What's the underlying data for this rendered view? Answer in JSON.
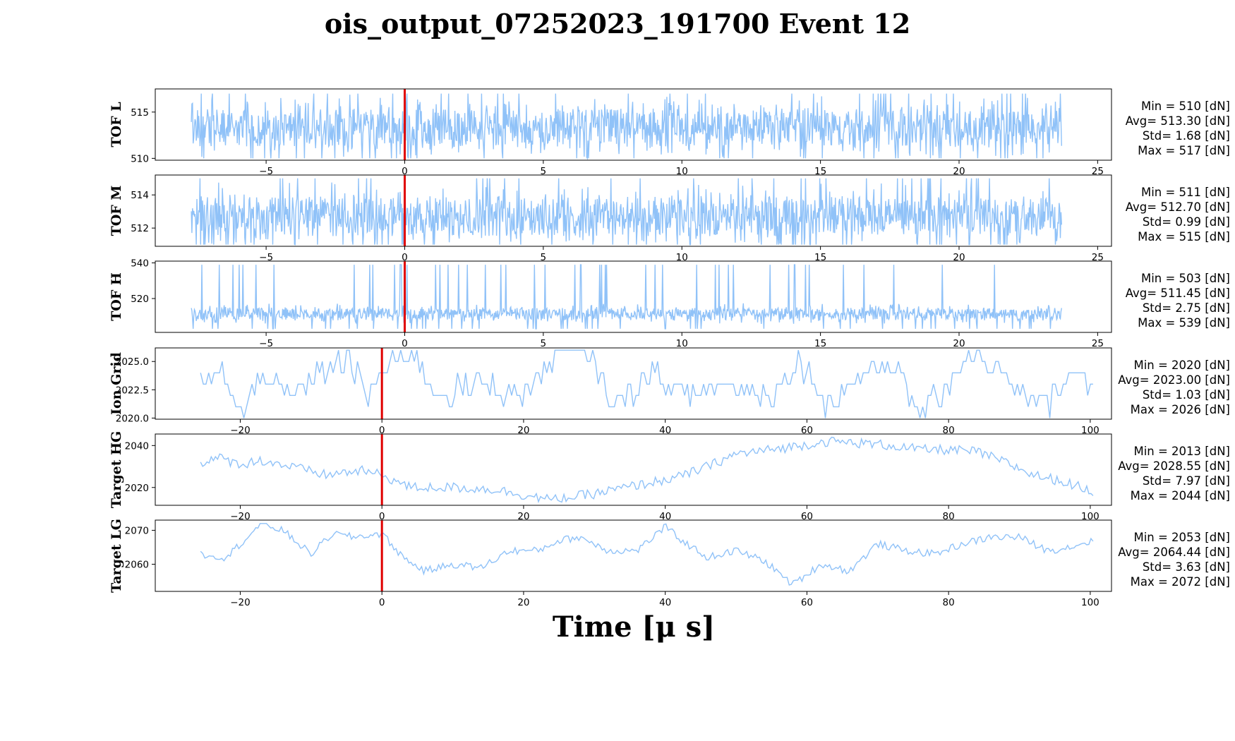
{
  "figure": {
    "title": "ois_output_07252023_191700 Event 12",
    "xlabel": "Time [μ s]"
  },
  "colors": {
    "signal": "#90c2f8",
    "marker": "#e00000",
    "frame": "#000000"
  },
  "chart_data": [
    {
      "type": "line",
      "ylabel": "TOF L",
      "xlim": [
        -9,
        25.5
      ],
      "ylim": [
        509.8,
        517.5
      ],
      "xticks": [
        -5,
        0,
        5,
        10,
        15,
        20,
        25
      ],
      "xtick_labels": [
        "−5",
        "0",
        "5",
        "10",
        "15",
        "20",
        "25"
      ],
      "yticks": [
        510,
        515
      ],
      "ytick_labels": [
        "510",
        "515"
      ],
      "marker_x": 0,
      "series": [
        {
          "x_range": [
            -7.7,
            23.7
          ],
          "pattern": "noise",
          "min": 510,
          "max": 517,
          "avg": 513.3,
          "std": 1.68
        }
      ],
      "stats": [
        "Min = 510 [dN]",
        "Avg= 513.30 [dN]",
        "Std= 1.68 [dN]",
        "Max = 517 [dN]"
      ]
    },
    {
      "type": "line",
      "ylabel": "TOF M",
      "xlim": [
        -9,
        25.5
      ],
      "ylim": [
        510.9,
        515.2
      ],
      "xticks": [
        -5,
        0,
        5,
        10,
        15,
        20,
        25
      ],
      "xtick_labels": [
        "−5",
        "0",
        "5",
        "10",
        "15",
        "20",
        "25"
      ],
      "yticks": [
        512,
        514
      ],
      "ytick_labels": [
        "512",
        "514"
      ],
      "marker_x": 0,
      "series": [
        {
          "x_range": [
            -7.7,
            23.7
          ],
          "pattern": "noise",
          "min": 511,
          "max": 515,
          "avg": 512.7,
          "std": 0.99
        }
      ],
      "stats": [
        "Min = 511 [dN]",
        "Avg= 512.70 [dN]",
        "Std= 0.99 [dN]",
        "Max = 515 [dN]"
      ]
    },
    {
      "type": "line",
      "ylabel": "TOF H",
      "xlim": [
        -9,
        25.5
      ],
      "ylim": [
        501,
        541
      ],
      "xticks": [
        -5,
        0,
        5,
        10,
        15,
        20,
        25
      ],
      "xtick_labels": [
        "−5",
        "0",
        "5",
        "10",
        "15",
        "20",
        "25"
      ],
      "yticks": [
        520,
        540
      ],
      "ytick_labels": [
        "520",
        "540"
      ],
      "marker_x": 0,
      "series": [
        {
          "x_range": [
            -7.7,
            23.7
          ],
          "pattern": "noise",
          "min": 503,
          "max": 539,
          "avg": 511.45,
          "std": 2.75,
          "spike_x": -0.15
        }
      ],
      "stats": [
        "Min = 503 [dN]",
        "Avg= 511.45 [dN]",
        "Std= 2.75 [dN]",
        "Max = 539 [dN]"
      ]
    },
    {
      "type": "line",
      "ylabel": "Ion Grid",
      "xlim": [
        -32,
        103
      ],
      "ylim": [
        2019.9,
        2026.2
      ],
      "xticks": [
        -20,
        0,
        20,
        40,
        60,
        80,
        100
      ],
      "xtick_labels": [
        "−20",
        "0",
        "20",
        "40",
        "60",
        "80",
        "100"
      ],
      "yticks": [
        2020.0,
        2022.5,
        2025.0
      ],
      "ytick_labels": [
        "2020.0",
        "2022.5",
        "2025.0"
      ],
      "marker_x": 0,
      "series": [
        {
          "x_range": [
            -25.6,
            100.4
          ],
          "pattern": "steps",
          "anchors": [
            [
              -25.6,
              2023
            ],
            [
              -22,
              2024
            ],
            [
              -20,
              2020
            ],
            [
              -17,
              2024
            ],
            [
              -13,
              2022
            ],
            [
              -9,
              2024
            ],
            [
              -5,
              2025
            ],
            [
              -2,
              2022
            ],
            [
              0,
              2024
            ],
            [
              4,
              2026
            ],
            [
              8,
              2022
            ],
            [
              14,
              2023
            ],
            [
              20,
              2022
            ],
            [
              25,
              2026
            ],
            [
              29,
              2026
            ],
            [
              33,
              2021
            ],
            [
              38,
              2024
            ],
            [
              43,
              2022
            ],
            [
              48,
              2023
            ],
            [
              55,
              2022
            ],
            [
              59,
              2025
            ],
            [
              63,
              2021
            ],
            [
              68,
              2024
            ],
            [
              72,
              2025
            ],
            [
              76,
              2020
            ],
            [
              80,
              2023
            ],
            [
              83,
              2026
            ],
            [
              87,
              2024
            ],
            [
              90,
              2022
            ],
            [
              94,
              2021
            ],
            [
              97,
              2024
            ],
            [
              100.4,
              2023
            ]
          ],
          "min": 2020,
          "max": 2026,
          "avg": 2023.0,
          "std": 1.03
        }
      ],
      "stats": [
        "Min = 2020 [dN]",
        "Avg= 2023.00 [dN]",
        "Std= 1.03 [dN]",
        "Max = 2026 [dN]"
      ]
    },
    {
      "type": "line",
      "ylabel": "Target HG",
      "xlim": [
        -32,
        103
      ],
      "ylim": [
        2011.5,
        2045.5
      ],
      "xticks": [
        -20,
        0,
        20,
        40,
        60,
        80,
        100
      ],
      "xtick_labels": [
        "−20",
        "0",
        "20",
        "40",
        "60",
        "80",
        "100"
      ],
      "yticks": [
        2020,
        2040
      ],
      "ytick_labels": [
        "2020",
        "2040"
      ],
      "marker_x": 0,
      "series": [
        {
          "x_range": [
            -25.6,
            100.4
          ],
          "pattern": "smooth",
          "anchors": [
            [
              -25.6,
              2032
            ],
            [
              -23,
              2034
            ],
            [
              -20,
              2031
            ],
            [
              -17,
              2033
            ],
            [
              -13,
              2030
            ],
            [
              -8,
              2026
            ],
            [
              -3,
              2028
            ],
            [
              0,
              2026
            ],
            [
              4,
              2020
            ],
            [
              10,
              2020
            ],
            [
              16,
              2019
            ],
            [
              24,
              2014
            ],
            [
              30,
              2017
            ],
            [
              36,
              2021
            ],
            [
              42,
              2025
            ],
            [
              46,
              2030
            ],
            [
              50,
              2036
            ],
            [
              55,
              2038
            ],
            [
              59,
              2040
            ],
            [
              63,
              2042
            ],
            [
              68,
              2041
            ],
            [
              72,
              2040
            ],
            [
              76,
              2038
            ],
            [
              80,
              2038
            ],
            [
              84,
              2037
            ],
            [
              88,
              2032
            ],
            [
              92,
              2026
            ],
            [
              96,
              2023
            ],
            [
              100.4,
              2018
            ]
          ],
          "min": 2013,
          "max": 2044,
          "avg": 2028.55,
          "std": 7.97
        }
      ],
      "stats": [
        "Min = 2013 [dN]",
        "Avg= 2028.55 [dN]",
        "Std= 7.97 [dN]",
        "Max = 2044 [dN]"
      ]
    },
    {
      "type": "line",
      "ylabel": "Target LG",
      "xlim": [
        -32,
        103
      ],
      "ylim": [
        2052,
        2073
      ],
      "xticks": [
        -20,
        0,
        20,
        40,
        60,
        80,
        100
      ],
      "xtick_labels": [
        "−20",
        "0",
        "20",
        "40",
        "60",
        "80",
        "100"
      ],
      "yticks": [
        2060,
        2070
      ],
      "ytick_labels": [
        "2060",
        "2070"
      ],
      "marker_x": 0,
      "series": [
        {
          "x_range": [
            -25.6,
            100.4
          ],
          "pattern": "smooth",
          "anchors": [
            [
              -25.6,
              2063
            ],
            [
              -22,
              2062
            ],
            [
              -20,
              2066
            ],
            [
              -17,
              2072
            ],
            [
              -14,
              2070
            ],
            [
              -10,
              2063
            ],
            [
              -7,
              2069
            ],
            [
              -4,
              2068
            ],
            [
              0,
              2069
            ],
            [
              3,
              2062
            ],
            [
              6,
              2058
            ],
            [
              10,
              2060
            ],
            [
              14,
              2059
            ],
            [
              18,
              2064
            ],
            [
              22,
              2064
            ],
            [
              25,
              2067
            ],
            [
              28,
              2068
            ],
            [
              32,
              2064
            ],
            [
              36,
              2064
            ],
            [
              40,
              2071
            ],
            [
              43,
              2066
            ],
            [
              46,
              2062
            ],
            [
              50,
              2064
            ],
            [
              54,
              2061
            ],
            [
              58,
              2054
            ],
            [
              62,
              2060
            ],
            [
              66,
              2058
            ],
            [
              70,
              2066
            ],
            [
              74,
              2064
            ],
            [
              78,
              2063
            ],
            [
              82,
              2066
            ],
            [
              86,
              2068
            ],
            [
              90,
              2068
            ],
            [
              94,
              2064
            ],
            [
              97,
              2065
            ],
            [
              100.4,
              2067
            ]
          ],
          "min": 2053,
          "max": 2072,
          "avg": 2064.44,
          "std": 3.63
        }
      ],
      "stats": [
        "Min = 2053 [dN]",
        "Avg= 2064.44 [dN]",
        "Std= 3.63 [dN]",
        "Max = 2072 [dN]"
      ]
    }
  ]
}
